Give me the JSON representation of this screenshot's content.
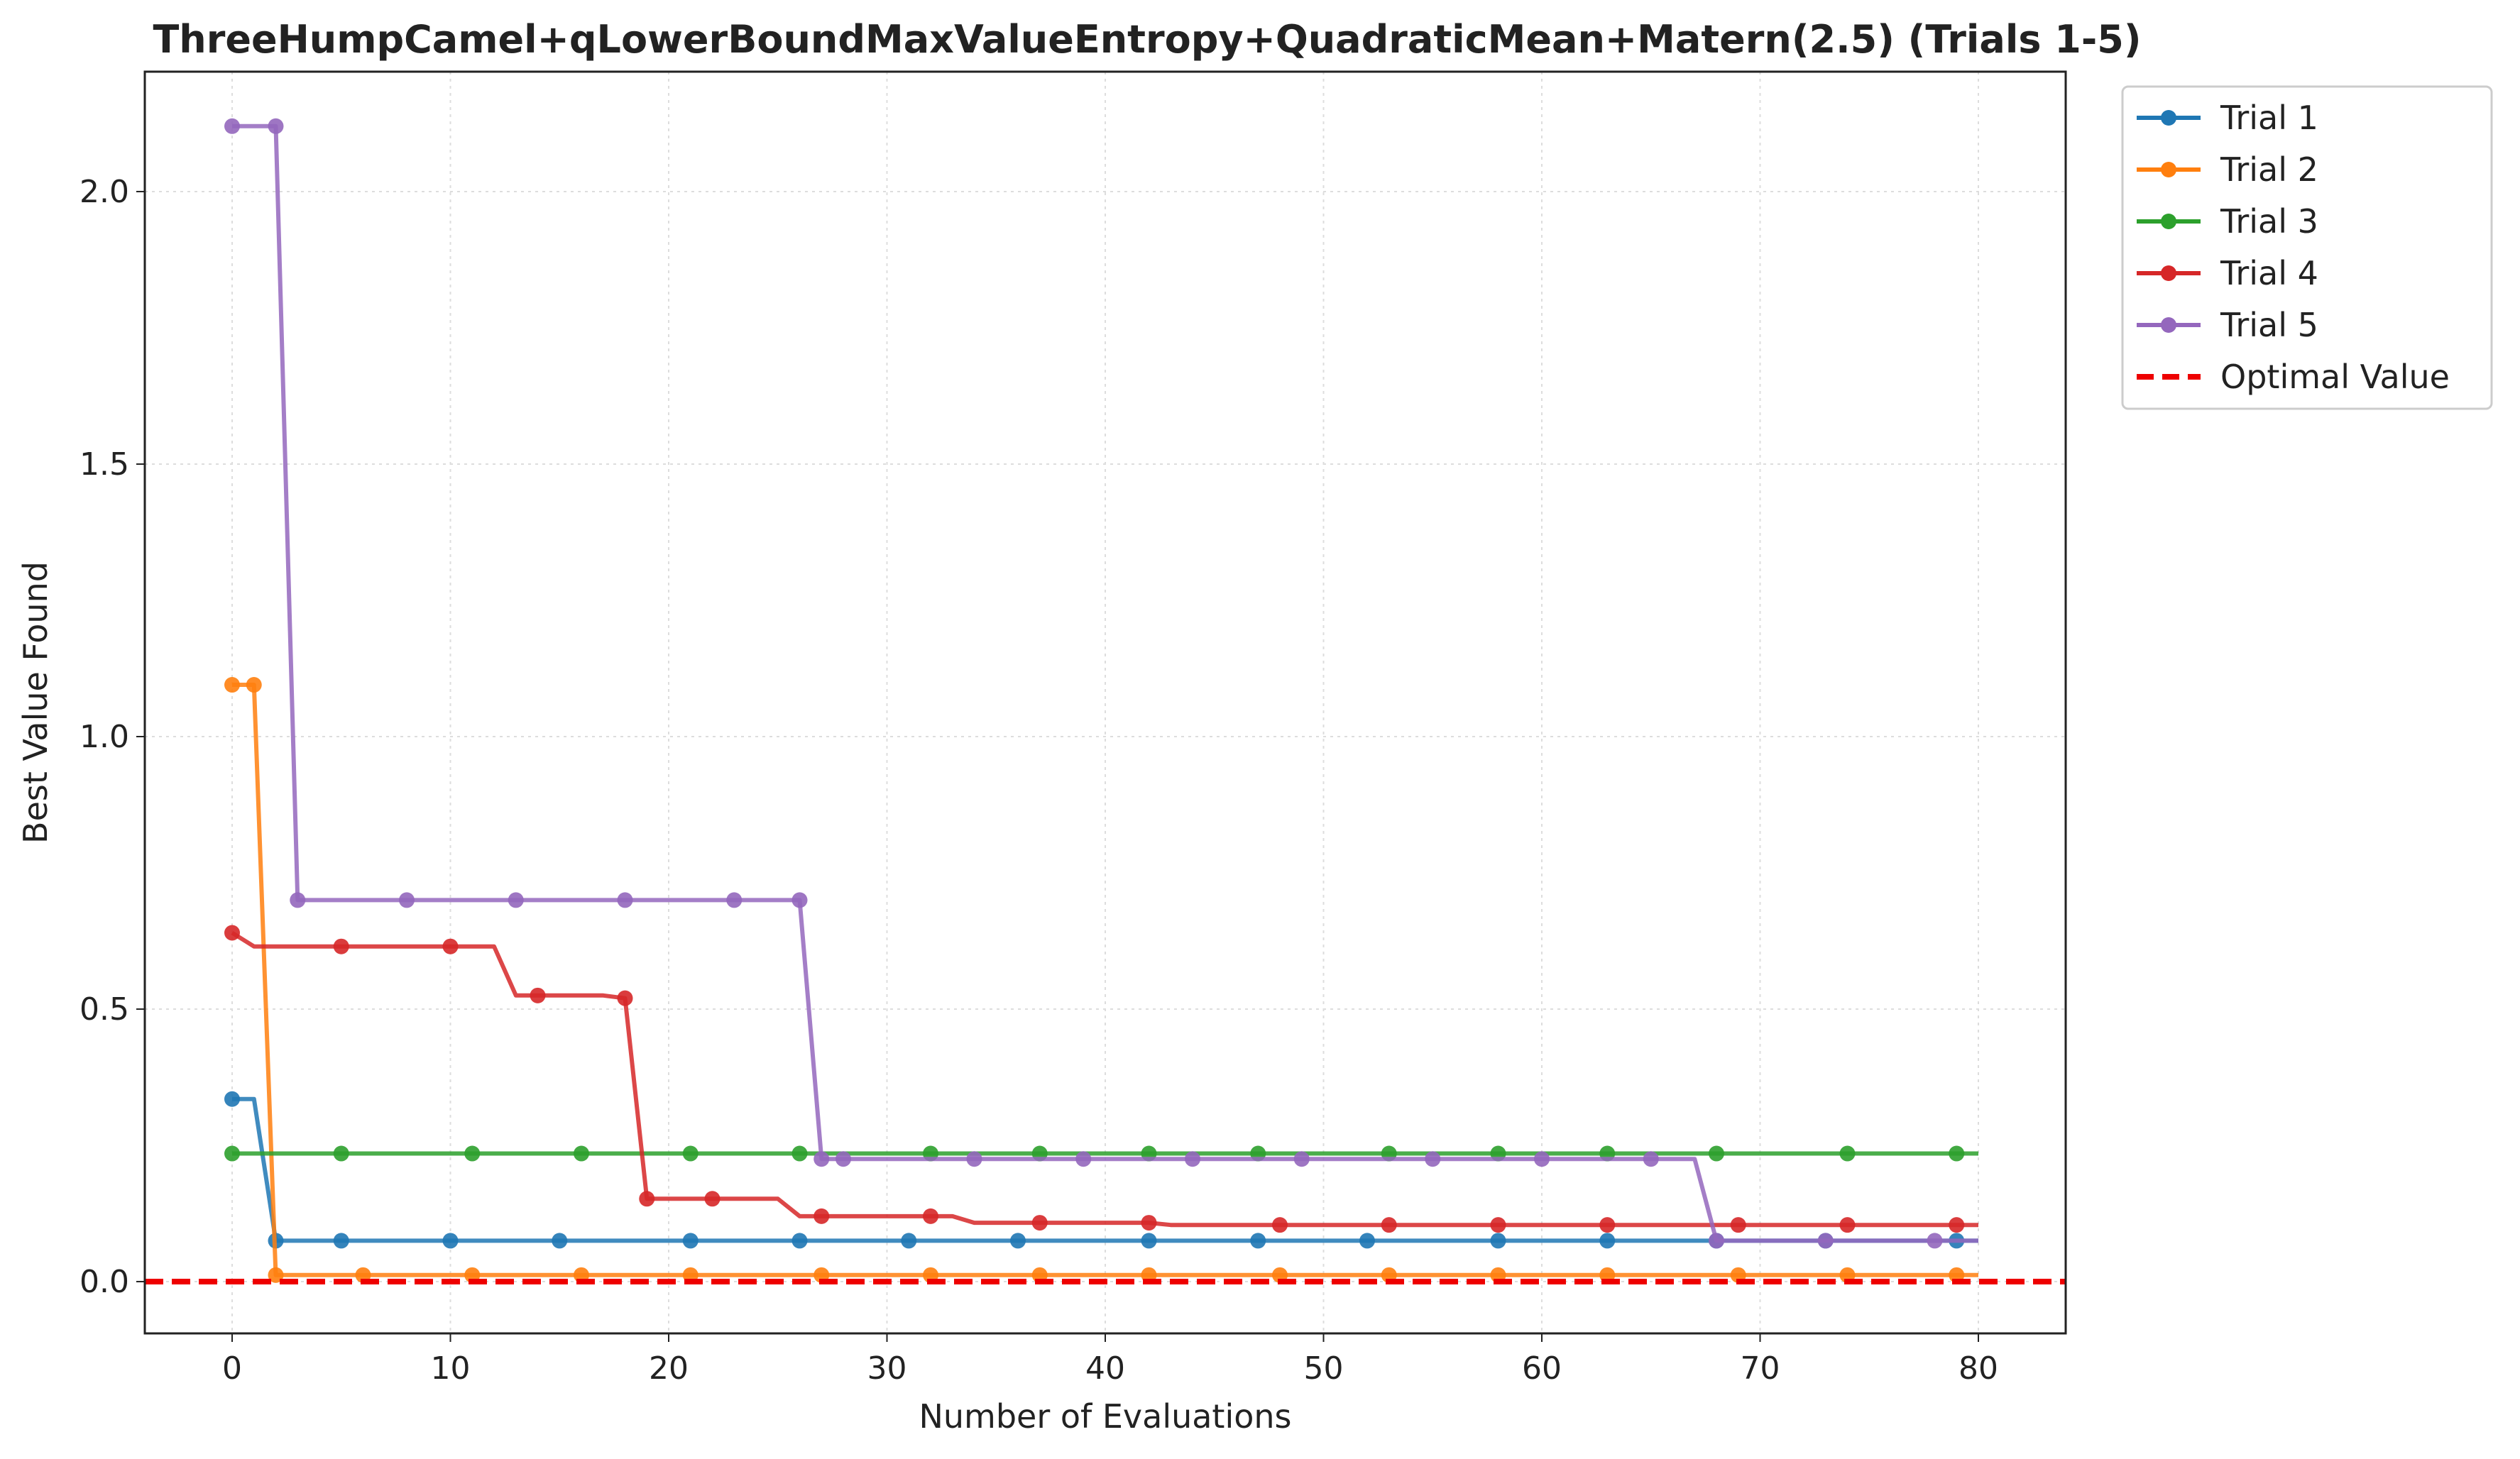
{
  "chart_data": {
    "type": "line",
    "title": "ThreeHumpCamel+qLowerBoundMaxValueEntropy+QuadraticMean+Matern(2.5) (Trials 1-5)",
    "xlabel": "Number of Evaluations",
    "ylabel": "Best Value Found",
    "xlim": [
      -4,
      84
    ],
    "ylim": [
      -0.095,
      2.22
    ],
    "xticks": [
      0,
      10,
      20,
      30,
      40,
      50,
      60,
      70,
      80
    ],
    "yticks": [
      0.0,
      0.5,
      1.0,
      1.5,
      2.0
    ],
    "xtick_labels": [
      "0",
      "10",
      "20",
      "30",
      "40",
      "50",
      "60",
      "70",
      "80"
    ],
    "ytick_labels": [
      "0.0",
      "0.5",
      "1.0",
      "1.5",
      "2.0"
    ],
    "grid": true,
    "legend_position": "outside-top-right",
    "n_points": 81,
    "series": [
      {
        "name": "Trial 1",
        "color": "#1f77b4",
        "steps": [
          [
            0,
            0.335
          ],
          [
            2,
            0.075
          ]
        ],
        "markers": [
          0,
          2,
          5,
          10,
          15,
          21,
          26,
          31,
          36,
          42,
          47,
          52,
          58,
          63,
          68,
          73,
          79
        ]
      },
      {
        "name": "Trial 2",
        "color": "#ff7f0e",
        "steps": [
          [
            0,
            1.095
          ],
          [
            2,
            0.012
          ]
        ],
        "markers": [
          0,
          1,
          2,
          6,
          11,
          16,
          21,
          27,
          32,
          37,
          42,
          48,
          53,
          58,
          63,
          69,
          74,
          79
        ]
      },
      {
        "name": "Trial 3",
        "color": "#2ca02c",
        "steps": [
          [
            0,
            0.235
          ]
        ],
        "markers": [
          0,
          5,
          11,
          16,
          21,
          26,
          32,
          37,
          42,
          47,
          53,
          58,
          63,
          68,
          74,
          79
        ]
      },
      {
        "name": "Trial 4",
        "color": "#d62728",
        "steps": [
          [
            0,
            0.64
          ],
          [
            1,
            0.615
          ],
          [
            13,
            0.525
          ],
          [
            18,
            0.52
          ],
          [
            19,
            0.152
          ],
          [
            26,
            0.12
          ],
          [
            34,
            0.108
          ],
          [
            43,
            0.104
          ]
        ],
        "markers": [
          0,
          5,
          10,
          14,
          18,
          19,
          22,
          27,
          32,
          37,
          42,
          48,
          53,
          58,
          63,
          69,
          74,
          79
        ]
      },
      {
        "name": "Trial 5",
        "color": "#9467bd",
        "steps": [
          [
            0,
            2.12
          ],
          [
            3,
            0.7
          ],
          [
            27,
            0.225
          ],
          [
            68,
            0.075
          ]
        ],
        "markers": [
          0,
          2,
          3,
          8,
          13,
          18,
          23,
          26,
          27,
          28,
          34,
          39,
          44,
          49,
          55,
          60,
          65,
          68,
          73,
          78
        ]
      }
    ],
    "reference_line": {
      "name": "Optimal Value",
      "value": 0.0,
      "color": "#ee0000",
      "style": "dashed"
    }
  }
}
